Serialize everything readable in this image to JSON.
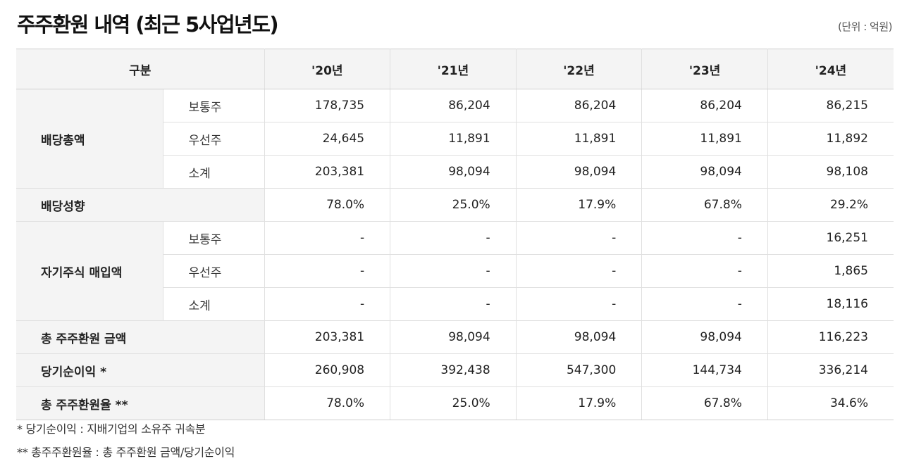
{
  "title": "주주환원 내역 (최근 5사업년도)",
  "unit": "(단위 : 억원)",
  "header": {
    "label": "구분",
    "years": [
      "'20년",
      "'21년",
      "'22년",
      "'23년",
      "'24년"
    ]
  },
  "dividend": {
    "label": "배당총액",
    "rows": [
      {
        "label": "보통주",
        "values": [
          "178,735",
          "86,204",
          "86,204",
          "86,204",
          "86,215"
        ]
      },
      {
        "label": "우선주",
        "values": [
          "24,645",
          "11,891",
          "11,891",
          "11,891",
          "11,892"
        ]
      },
      {
        "label": "소계",
        "values": [
          "203,381",
          "98,094",
          "98,094",
          "98,094",
          "98,108"
        ]
      }
    ]
  },
  "payout": {
    "label": "배당성향",
    "values": [
      "78.0%",
      "25.0%",
      "17.9%",
      "67.8%",
      "29.2%"
    ]
  },
  "buyback": {
    "label": "자기주식 매입액",
    "rows": [
      {
        "label": "보통주",
        "values": [
          "-",
          "-",
          "-",
          "-",
          "16,251"
        ]
      },
      {
        "label": "우선주",
        "values": [
          "-",
          "-",
          "-",
          "-",
          "1,865"
        ]
      },
      {
        "label": "소계",
        "values": [
          "-",
          "-",
          "-",
          "-",
          "18,116"
        ]
      }
    ]
  },
  "total_return": {
    "label": "총 주주환원 금액",
    "values": [
      "203,381",
      "98,094",
      "98,094",
      "98,094",
      "116,223"
    ]
  },
  "net_income": {
    "label": "당기순이익 *",
    "values": [
      "260,908",
      "392,438",
      "547,300",
      "144,734",
      "336,214"
    ]
  },
  "return_ratio": {
    "label": "총 주주환원율 **",
    "values": [
      "78.0%",
      "25.0%",
      "17.9%",
      "67.8%",
      "34.6%"
    ]
  },
  "notes": [
    "* 당기순이익 : 지배기업의 소유주 귀속분",
    "** 총주주환원율 : 총 주주환원 금액/당기순이익"
  ]
}
